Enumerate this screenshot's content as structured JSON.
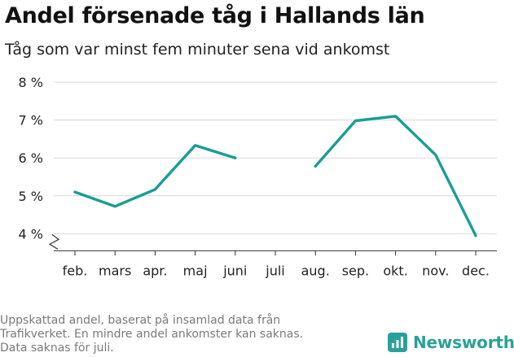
{
  "chart_data": {
    "type": "line",
    "title": "Andel försenade tåg i Hallands län",
    "subtitle": "Tåg som var minst fem minuter sena vid ankomst",
    "categories": [
      "feb.",
      "mars",
      "apr.",
      "maj",
      "juni",
      "juli",
      "aug.",
      "sep.",
      "okt.",
      "nov.",
      "dec."
    ],
    "series": [
      {
        "values": [
          5.1,
          4.72,
          5.17,
          6.33,
          6.0,
          null,
          5.78,
          6.98,
          7.1,
          6.08,
          3.95
        ]
      }
    ],
    "yticks": [
      4,
      5,
      6,
      7,
      8
    ],
    "ytick_labels": [
      "4 %",
      "5 %",
      "6 %",
      "7 %",
      "8 %"
    ],
    "ylim": [
      3.55,
      8
    ],
    "y_axis_break": true,
    "grid": true,
    "line_color": "#1a9e93"
  },
  "footnote": [
    "Uppskattad andel, baserat på insamlad data från",
    "Trafikverket. En mindre andel ankomster kan saknas.",
    "Data saknas för juli."
  ],
  "brand": {
    "name": "Newsworthy",
    "icon": "newsworthy-logo-icon",
    "color": "#2aa198"
  }
}
